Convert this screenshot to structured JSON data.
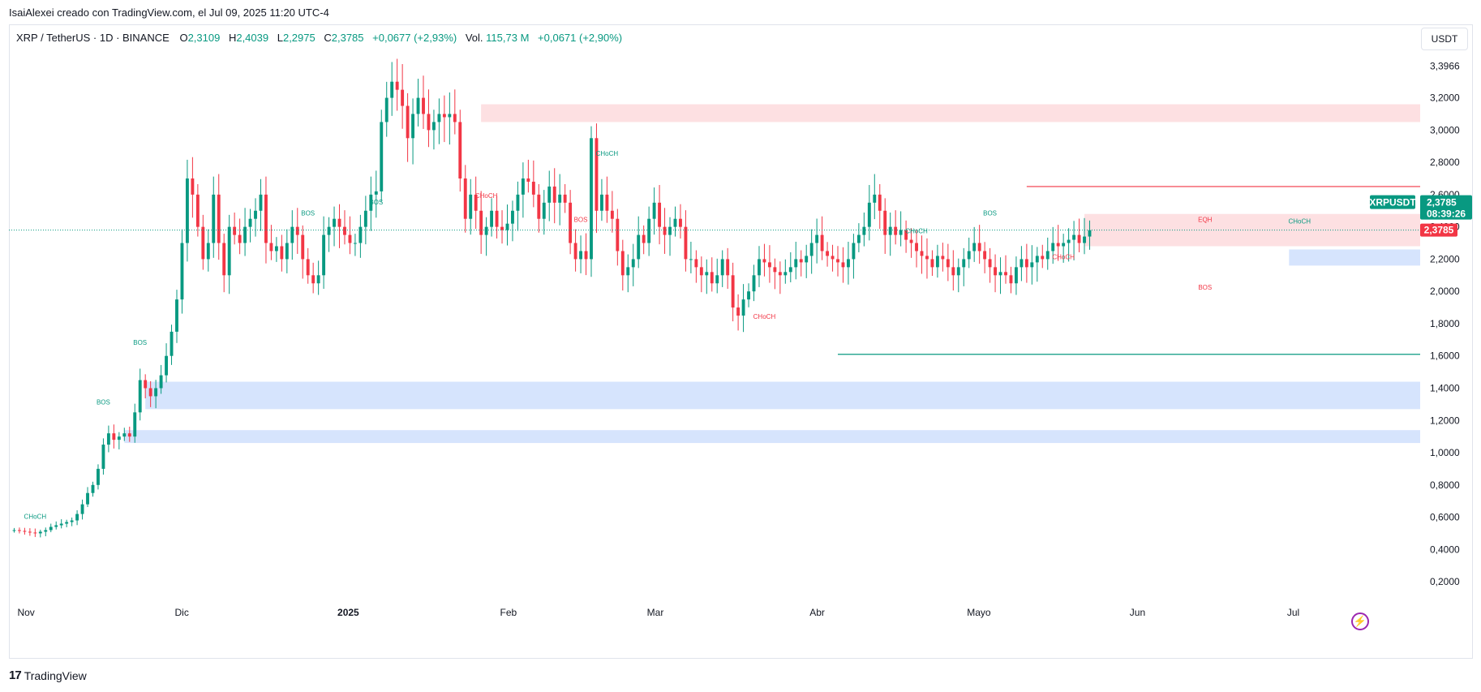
{
  "credit": "IsaiAlexei creado con TradingView.com, el Jul 09, 2025 11:20 UTC-4",
  "legend": {
    "symbol": "XRP / TetherUS · 1D · BINANCE",
    "open_label": "O",
    "open": "2,3109",
    "high_label": "H",
    "high": "2,4039",
    "low_label": "L",
    "low": "2,2975",
    "close_label": "C",
    "close": "2,3785",
    "change": "+0,0677 (+2,93%)",
    "volume_label": "Vol.",
    "volume": "115,73 M",
    "volume_change": "+0,0671 (+2,90%)"
  },
  "currency_button": "USDT",
  "brand": "TradingView",
  "icons": {
    "brand": "tradingview-logo-icon",
    "lightning": "lightning-icon"
  },
  "colors": {
    "up": "#089981",
    "down": "#f23645",
    "supply_zone": "#fde0e2",
    "demand_zone": "#d6e4fd",
    "up_wick": "#089981"
  },
  "chart_data": {
    "type": "candlestick",
    "y_axis_side": "right",
    "ylim": [
      0.13,
      3.55
    ],
    "yticks": [
      3.3966,
      3.2,
      3.0,
      2.8,
      2.6,
      2.4,
      2.2,
      2.0,
      1.8,
      1.6,
      1.4,
      1.2,
      1.0,
      0.8,
      0.6,
      0.4,
      0.2
    ],
    "ytick_labels": [
      "3,3966",
      "3,2000",
      "3,0000",
      "2,8000",
      "2,6000",
      "2,4000",
      "2,2000",
      "2,0000",
      "1,8000",
      "1,6000",
      "1,4000",
      "1,2000",
      "1,0000",
      "0,8000",
      "0,6000",
      "0,4000",
      "0,2000"
    ],
    "x_labels": [
      {
        "label": "Nov",
        "date": "2024-11-01",
        "bold": false
      },
      {
        "label": "Dic",
        "date": "2024-12-01",
        "bold": false
      },
      {
        "label": "2025",
        "date": "2025-01-01",
        "bold": true
      },
      {
        "label": "Feb",
        "date": "2025-02-01",
        "bold": false
      },
      {
        "label": "Mar",
        "date": "2025-03-01",
        "bold": false
      },
      {
        "label": "Abr",
        "date": "2025-04-01",
        "bold": false
      },
      {
        "label": "Mayo",
        "date": "2025-05-01",
        "bold": false
      },
      {
        "label": "Jun",
        "date": "2025-06-01",
        "bold": false
      },
      {
        "label": "Jul",
        "date": "2025-07-01",
        "bold": false
      }
    ],
    "x_range": [
      "2024-10-31",
      "2025-07-27"
    ],
    "closes": [
      0.52,
      0.515,
      0.51,
      0.505,
      0.5,
      0.51,
      0.52,
      0.54,
      0.55,
      0.56,
      0.57,
      0.58,
      0.62,
      0.68,
      0.75,
      0.8,
      0.9,
      1.05,
      1.12,
      1.08,
      1.1,
      1.12,
      1.1,
      1.25,
      1.45,
      1.4,
      1.35,
      1.4,
      1.48,
      1.6,
      1.75,
      1.95,
      2.3,
      2.7,
      2.6,
      2.4,
      2.2,
      2.3,
      2.6,
      2.3,
      2.1,
      2.4,
      2.35,
      2.3,
      2.4,
      2.45,
      2.5,
      2.6,
      2.3,
      2.25,
      2.28,
      2.2,
      2.3,
      2.4,
      2.35,
      2.2,
      2.1,
      2.05,
      2.1,
      2.35,
      2.4,
      2.45,
      2.4,
      2.35,
      2.3,
      2.3,
      2.4,
      2.5,
      2.6,
      2.62,
      3.05,
      3.2,
      3.3,
      3.25,
      3.15,
      2.95,
      3.1,
      3.2,
      3.1,
      3.0,
      3.05,
      3.1,
      3.08,
      3.1,
      3.05,
      2.7,
      2.45,
      2.6,
      2.5,
      2.35,
      2.4,
      2.5,
      2.4,
      2.38,
      2.42,
      2.5,
      2.6,
      2.7,
      2.68,
      2.6,
      2.45,
      2.55,
      2.65,
      2.55,
      2.6,
      2.55,
      2.3,
      2.2,
      2.25,
      2.2,
      2.95,
      2.5,
      2.6,
      2.5,
      2.45,
      2.25,
      2.1,
      2.15,
      2.2,
      2.35,
      2.3,
      2.45,
      2.55,
      2.4,
      2.35,
      2.4,
      2.45,
      2.4,
      2.2,
      2.2,
      2.15,
      2.1,
      2.12,
      2.05,
      2.1,
      2.2,
      2.1,
      1.9,
      1.85,
      1.95,
      2.0,
      2.1,
      2.2,
      2.18,
      2.15,
      2.12,
      2.1,
      2.12,
      2.15,
      2.2,
      2.18,
      2.22,
      2.3,
      2.35,
      2.25,
      2.22,
      2.2,
      2.18,
      2.15,
      2.2,
      2.3,
      2.35,
      2.4,
      2.55,
      2.6,
      2.5,
      2.35,
      2.4,
      2.35,
      2.38,
      2.32,
      2.3,
      2.25,
      2.22,
      2.2,
      2.15,
      2.22,
      2.2,
      2.15,
      2.1,
      2.15,
      2.2,
      2.25,
      2.3,
      2.25,
      2.2,
      2.15,
      2.1,
      2.12,
      2.1,
      2.05,
      2.15,
      2.2,
      2.15,
      2.18,
      2.22,
      2.2,
      2.25,
      2.3,
      2.28,
      2.3,
      2.32,
      2.35,
      2.3,
      2.34,
      2.38
    ]
  },
  "price_tags": {
    "symbol_tag": "XRPUSDT",
    "price": "2,3785",
    "countdown": "08:39:26",
    "close_tag": "2,3785"
  },
  "annotations": [
    {
      "text": "CHoCH",
      "date": "2024-11-05",
      "price": 0.59,
      "color": "up"
    },
    {
      "text": "BOS",
      "date": "2024-11-18",
      "price": 1.3,
      "color": "up"
    },
    {
      "text": "BOS",
      "date": "2024-11-25",
      "price": 1.67,
      "color": "up"
    },
    {
      "text": "BOS",
      "date": "2024-12-27",
      "price": 2.47,
      "color": "up"
    },
    {
      "text": "BOS",
      "date": "2025-01-09",
      "price": 2.54,
      "color": "up"
    },
    {
      "text": "CHoCH",
      "date": "2025-01-30",
      "price": 2.58,
      "color": "down"
    },
    {
      "text": "CHoCH",
      "date": "2025-02-22",
      "price": 2.84,
      "color": "up"
    },
    {
      "text": "BOS",
      "date": "2025-02-17",
      "price": 2.43,
      "color": "down"
    },
    {
      "text": "CHoCH",
      "date": "2025-03-24",
      "price": 1.83,
      "color": "down"
    },
    {
      "text": "CHoCH",
      "date": "2025-04-22",
      "price": 2.36,
      "color": "up"
    },
    {
      "text": "BOS",
      "date": "2025-05-06",
      "price": 2.47,
      "color": "up"
    },
    {
      "text": "CHoCH",
      "date": "2025-05-20",
      "price": 2.2,
      "color": "down"
    },
    {
      "text": "EQH",
      "date": "2025-06-16",
      "price": 2.43,
      "color": "down"
    },
    {
      "text": "BOS",
      "date": "2025-06-16",
      "price": 2.01,
      "color": "down"
    },
    {
      "text": "CHoCH",
      "date": "2025-07-04",
      "price": 2.42,
      "color": "up"
    }
  ],
  "zones": [
    {
      "type": "supply",
      "from": "2025-01-29",
      "to": "2025-07-27",
      "top": 3.16,
      "bottom": 3.05
    },
    {
      "type": "supply",
      "from": "2025-05-24",
      "to": "2025-07-27",
      "top": 2.48,
      "bottom": 2.28
    },
    {
      "type": "demand",
      "from": "2025-07-02",
      "to": "2025-07-27",
      "top": 2.26,
      "bottom": 2.16
    },
    {
      "type": "demand",
      "from": "2024-11-26",
      "to": "2025-07-27",
      "top": 1.44,
      "bottom": 1.27
    },
    {
      "type": "demand",
      "from": "2024-11-22",
      "to": "2025-07-27",
      "top": 1.14,
      "bottom": 1.06
    }
  ],
  "levels": [
    {
      "price": 2.65,
      "from": "2025-05-13",
      "to": "2025-07-27",
      "color": "down"
    },
    {
      "price": 1.61,
      "from": "2025-04-07",
      "to": "2025-07-27",
      "color": "up"
    }
  ]
}
